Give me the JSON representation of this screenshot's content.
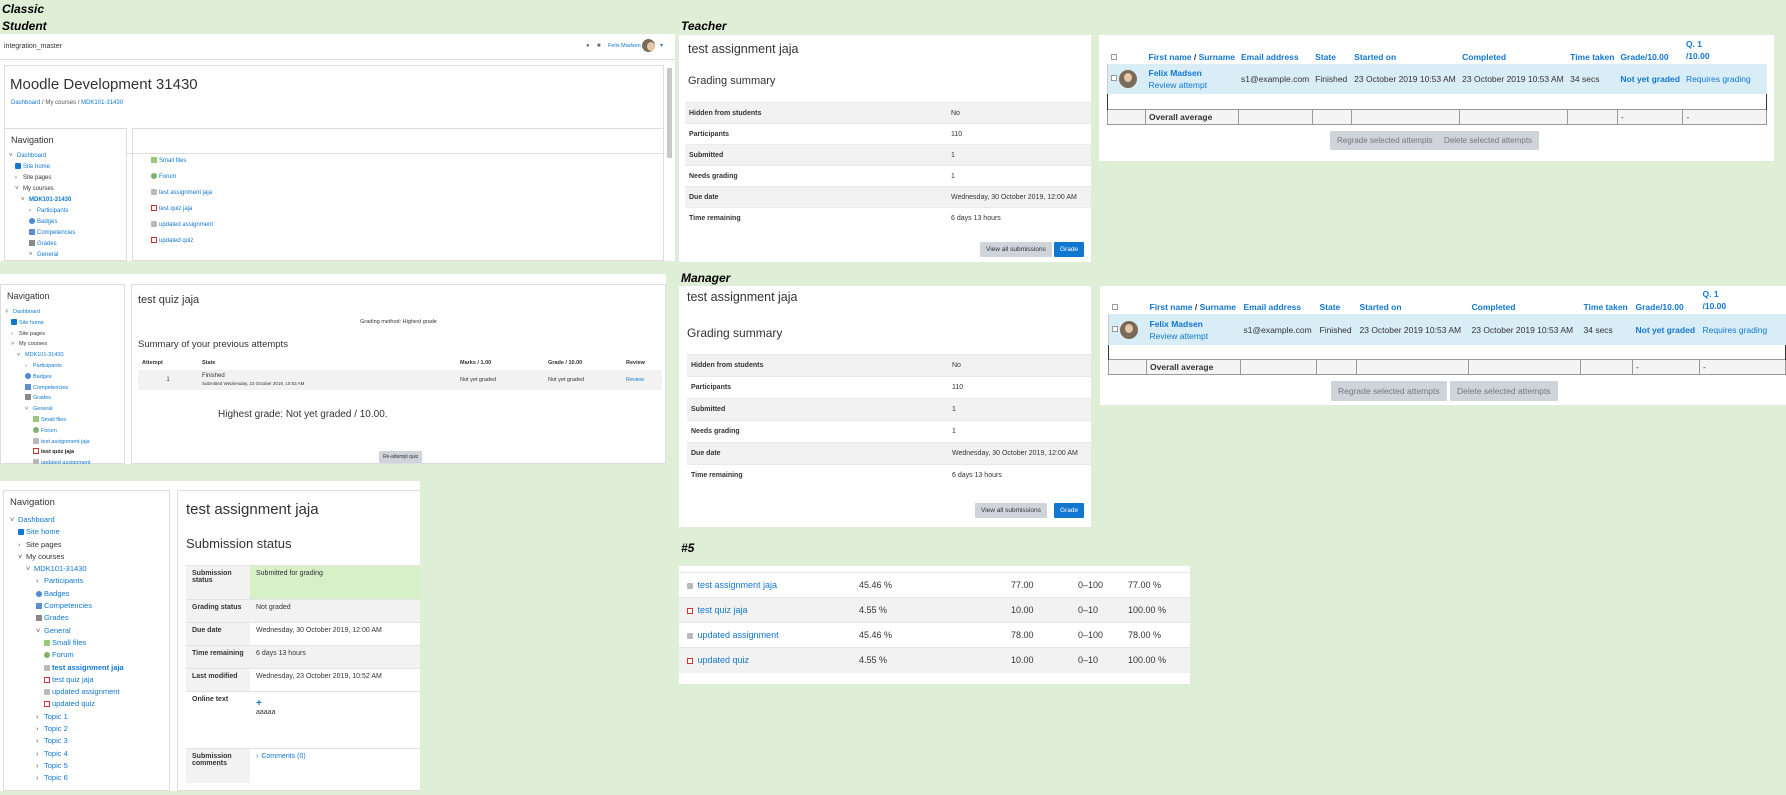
{
  "labels": {
    "classic": "Classic",
    "student": "Student",
    "teacher": "Teacher",
    "manager": "Manager",
    "five": "#5"
  },
  "header": {
    "site": "integration_master",
    "user": "Felix Madsen",
    "course_title": "Moodle Development 31430",
    "breadcrumb": [
      "Dashboard",
      "My courses",
      "MDK101-31430"
    ]
  },
  "nav": {
    "title": "Navigation",
    "dashboard": "Dashboard",
    "site_home": "Site home",
    "site_pages": "Site pages",
    "my_courses": "My courses",
    "course": "MDK101-31430",
    "participants": "Participants",
    "badges": "Badges",
    "competencies": "Competencies",
    "grades": "Grades",
    "general": "General",
    "small_files": "Small files",
    "forum": "Forum",
    "assignment": "test assignment jaja",
    "quiz": "test quiz jaja",
    "updated_assignment": "updated assignment",
    "updated_quiz": "updated quiz",
    "topics": [
      "Topic 1",
      "Topic 2",
      "Topic 3",
      "Topic 4",
      "Topic 5",
      "Topic 6"
    ]
  },
  "activities": [
    "Small files",
    "Forum",
    "test assignment jaja",
    "test quiz jaja",
    "updated assignment",
    "updated quiz"
  ],
  "quiz": {
    "title": "test quiz jaja",
    "grading_method": "Grading method: Highest grade",
    "summary_heading": "Summary of your previous attempts",
    "cols": [
      "Attempt",
      "State",
      "Marks / 1.00",
      "Grade / 10.00",
      "Review"
    ],
    "attempt": "1",
    "state": "Finished",
    "submitted": "Submitted Wednesday, 23 October 2019, 10:53 AM",
    "marks": "Not yet graded",
    "grade": "Not yet graded",
    "review": "Review",
    "highest": "Highest grade: Not yet graded / 10.00.",
    "reattempt": "Re-attempt quiz"
  },
  "submission": {
    "title": "test assignment jaja",
    "heading": "Submission status",
    "rows": [
      {
        "k": "Submission status",
        "v": "Submitted for grading"
      },
      {
        "k": "Grading status",
        "v": "Not graded"
      },
      {
        "k": "Due date",
        "v": "Wednesday, 30 October 2019, 12:00 AM"
      },
      {
        "k": "Time remaining",
        "v": "6 days 13 hours"
      },
      {
        "k": "Last modified",
        "v": "Wednesday, 23 October 2019, 10:52 AM"
      }
    ],
    "online_text_label": "Online text",
    "online_text": "aaaaa",
    "plus": "+",
    "comments_label": "Submission comments",
    "comments": "Comments (0)"
  },
  "grading": {
    "title": "test assignment jaja",
    "heading": "Grading summary",
    "rows": [
      {
        "k": "Hidden from students",
        "v": "No"
      },
      {
        "k": "Participants",
        "v": "110"
      },
      {
        "k": "Submitted",
        "v": "1"
      },
      {
        "k": "Needs grading",
        "v": "1"
      },
      {
        "k": "Due date",
        "v": "Wednesday, 30 October 2019, 12:00 AM"
      },
      {
        "k": "Time remaining",
        "v": "6 days 13 hours"
      }
    ],
    "view_all": "View all submissions",
    "grade": "Grade"
  },
  "attempts": {
    "first_name": "First name",
    "slash": "/",
    "surname": "Surname",
    "email": "Email address",
    "state": "State",
    "started": "Started on",
    "completed": "Completed",
    "time": "Time taken",
    "grade": "Grade/10.00",
    "q1a": "Q. 1",
    "q1b": "/10.00",
    "row": {
      "name": "Felix Madsen",
      "review": "Review attempt",
      "email": "s1@example.com",
      "state": "Finished",
      "started": "23 October 2019 10:53 AM",
      "completed": "23 October 2019 10:53 AM",
      "time": "34 secs",
      "grade": "Not yet graded",
      "q1": "Requires grading"
    },
    "overall": "Overall average",
    "dash": "-",
    "regrade": "Regrade selected attempts",
    "delete": "Delete selected attempts"
  },
  "grades5": [
    {
      "name": "test assignment jaja",
      "icon": "asg",
      "w": "45.46 %",
      "g": "77.00",
      "r": "0–100",
      "p": "77.00 %"
    },
    {
      "name": "test quiz jaja",
      "icon": "quiz",
      "w": "4.55 %",
      "g": "10.00",
      "r": "0–10",
      "p": "100.00 %"
    },
    {
      "name": "updated assignment",
      "icon": "asg",
      "w": "45.46 %",
      "g": "78.00",
      "r": "0–100",
      "p": "78.00 %"
    },
    {
      "name": "updated quiz",
      "icon": "quiz",
      "w": "4.55 %",
      "g": "10.00",
      "r": "0–10",
      "p": "100.00 %"
    }
  ]
}
